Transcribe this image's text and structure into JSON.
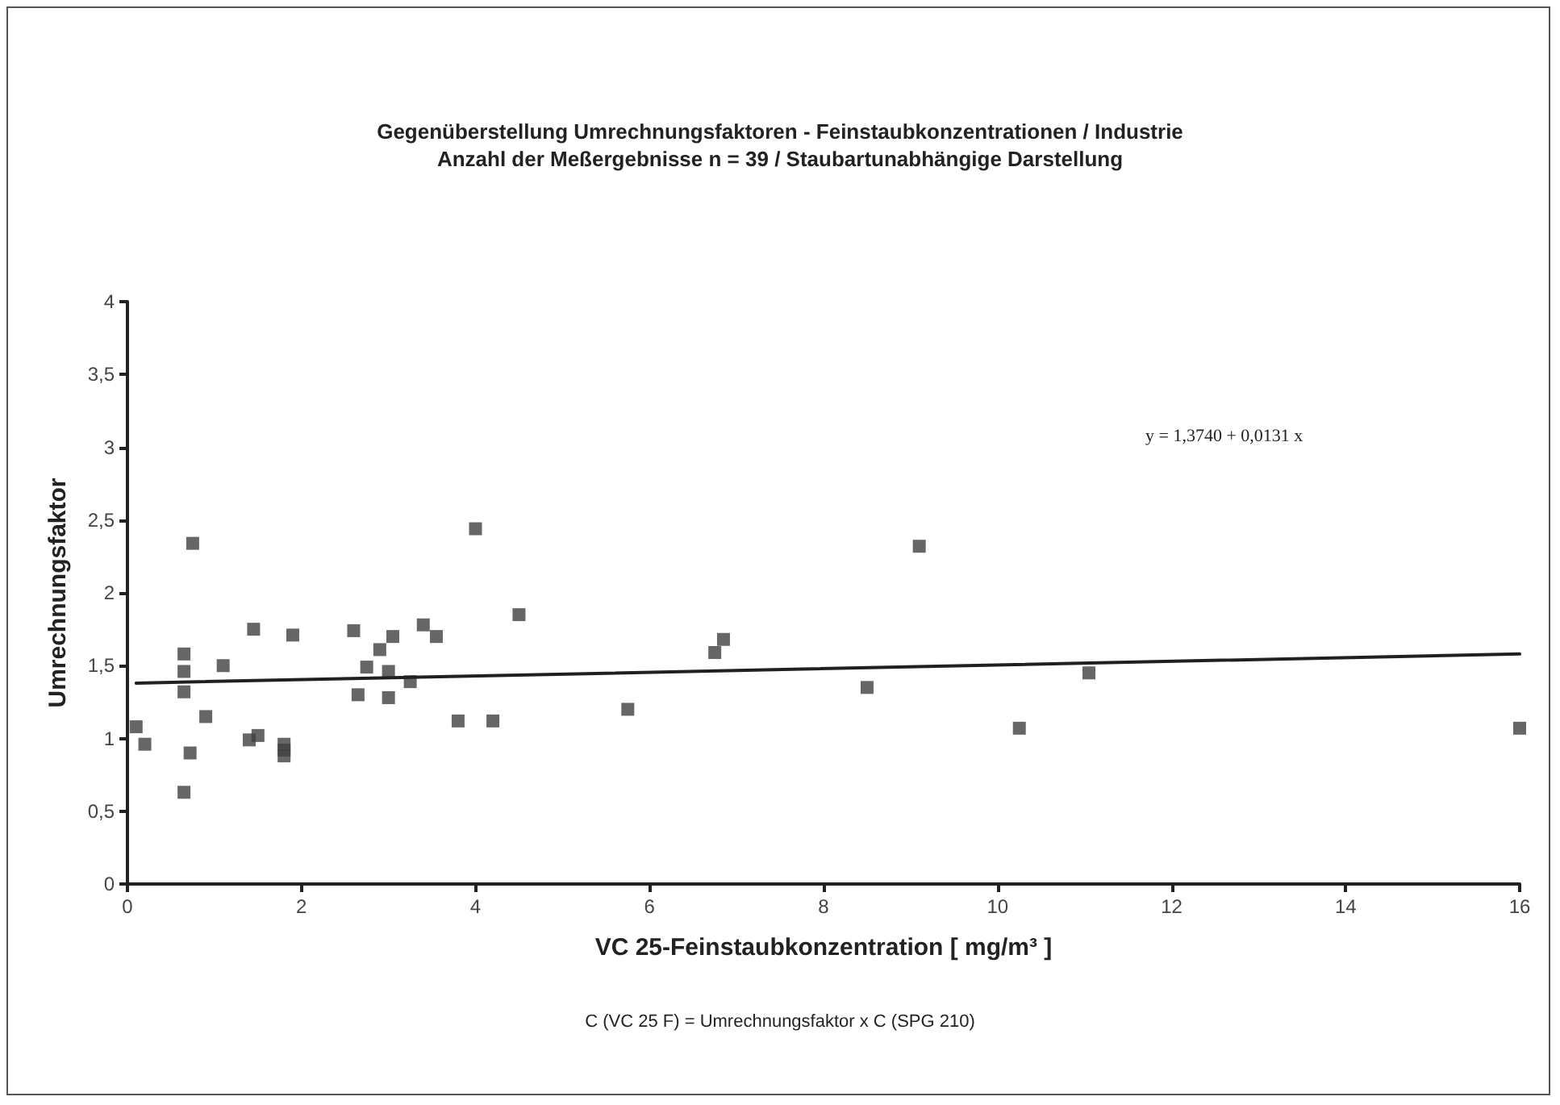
{
  "chart_data": {
    "type": "scatter",
    "title": "Gegenüberstellung Umrechnungsfaktoren - Feinstaubkonzentrationen / Industrie",
    "subtitle": "Anzahl der Meßergebnisse n = 39 / Staubartunabhängige Darstellung",
    "xlabel": "VC 25-Feinstaubkonzentration [ mg/m³ ]",
    "ylabel": "Umrechnungsfaktor",
    "annotations": [
      "y = 1,3740 + 0,0131 x",
      "C (VC 25 F) = Umrechnungsfaktor x C (SPG 210)"
    ],
    "series": [
      {
        "color": "#404040",
        "marker": "square",
        "x": [
          0.1,
          0.2,
          0.65,
          0.65,
          0.65,
          0.65,
          0.72,
          0.75,
          0.9,
          1.1,
          1.45,
          1.4,
          1.5,
          1.8,
          1.8,
          1.8,
          1.9,
          2.6,
          2.65,
          2.75,
          2.9,
          3.0,
          3.0,
          3.05,
          3.25,
          3.4,
          3.55,
          3.8,
          4.0,
          4.2,
          4.5,
          5.75,
          6.75,
          6.85,
          8.5,
          9.1,
          10.25,
          11.05,
          16
        ],
        "values": [
          1.08,
          0.96,
          1.58,
          1.46,
          1.32,
          0.63,
          0.9,
          2.34,
          1.15,
          1.5,
          1.75,
          0.99,
          1.02,
          0.96,
          0.92,
          0.88,
          1.71,
          1.74,
          1.3,
          1.49,
          1.61,
          1.46,
          1.28,
          1.7,
          1.39,
          1.78,
          1.7,
          1.12,
          2.44,
          1.12,
          1.85,
          1.2,
          1.59,
          1.68,
          1.35,
          2.32,
          1.07,
          1.45,
          1.07
        ]
      },
      {
        "type": "line",
        "color": "#202020",
        "marker": "none",
        "line_style": "solid",
        "x": [
          0.1,
          16
        ],
        "values": [
          1.38,
          1.58
        ]
      }
    ],
    "xlim": [
      0,
      16
    ],
    "xticks": [
      0,
      2,
      4,
      6,
      8,
      10,
      12,
      14,
      16
    ],
    "ylim": [
      0,
      4
    ],
    "yticks": [
      0,
      {
        "value": 0.5,
        "label": "0,5"
      },
      1,
      {
        "value": 1.5,
        "label": "1,5"
      },
      2,
      {
        "value": 2.5,
        "label": "2,5"
      },
      3,
      {
        "value": 3.5,
        "label": "3,5"
      },
      4
    ],
    "grid": false
  }
}
